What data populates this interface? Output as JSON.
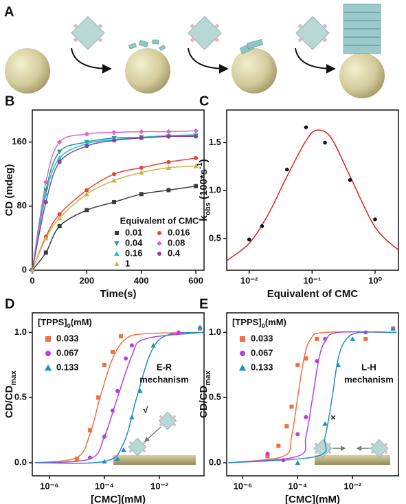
{
  "panel_a": {
    "label": "A"
  },
  "chart_data": [
    {
      "type": "line",
      "panel": "B",
      "xlabel": "Time(s)",
      "ylabel": "CD (mdeg)",
      "legend_title": "Equivalent of CMC",
      "x": [
        0,
        50,
        100,
        200,
        300,
        400,
        500,
        600
      ],
      "xlim": [
        0,
        630
      ],
      "ylim": [
        0,
        200
      ],
      "xticks": [
        0,
        200,
        400,
        600
      ],
      "yticks": [
        0,
        80,
        160
      ],
      "series": [
        {
          "name": "0.01",
          "color": "#3c3c3c",
          "marker": "square",
          "values": [
            0,
            22,
            55,
            75,
            85,
            95,
            100,
            105
          ]
        },
        {
          "name": "0.016",
          "color": "#e8423a",
          "marker": "circle",
          "values": [
            0,
            42,
            70,
            100,
            120,
            128,
            135,
            140
          ]
        },
        {
          "name": "0.04",
          "color": "#1f9e8e",
          "marker": "tri-down",
          "values": [
            0,
            100,
            148,
            160,
            165,
            166,
            167,
            168
          ]
        },
        {
          "name": "0.08",
          "color": "#d966c8",
          "marker": "diamond",
          "values": [
            0,
            110,
            160,
            170,
            172,
            173,
            173,
            174
          ]
        },
        {
          "name": "0.16",
          "color": "#22c0d0",
          "marker": "triangle",
          "values": [
            0,
            95,
            140,
            158,
            163,
            166,
            168,
            169
          ]
        },
        {
          "name": "0.4",
          "color": "#8a3fa0",
          "marker": "circle",
          "values": [
            0,
            85,
            135,
            155,
            162,
            165,
            167,
            167
          ]
        },
        {
          "name": "1",
          "color": "#c8b840",
          "marker": "triangle",
          "values": [
            0,
            40,
            65,
            95,
            112,
            122,
            128,
            130
          ]
        }
      ]
    },
    {
      "type": "scatter",
      "panel": "C",
      "xlabel": "Equivalent of CMC",
      "ylabel": [
        {
          "text": "k"
        },
        {
          "text": "obs",
          "shift": "sub"
        },
        {
          "text": " (100*s"
        },
        {
          "text": "-1",
          "shift": "super"
        },
        {
          "text": ")"
        }
      ],
      "xlog": true,
      "xlim": [
        0.0044,
        2.35
      ],
      "ylim": [
        0.17,
        1.84
      ],
      "xticks": [
        {
          "value": 0.01,
          "label": "10⁻²"
        },
        {
          "value": 0.1,
          "label": "10⁻¹"
        },
        {
          "value": 1,
          "label": "10⁰"
        }
      ],
      "yticks": [
        0.5,
        {
          "value": 1,
          "label": "1.0"
        },
        1.5
      ],
      "series": [
        {
          "color": "#111111",
          "marker": "circle",
          "x": [
            0.01,
            0.016,
            0.04,
            0.08,
            0.16,
            0.4,
            1
          ],
          "values": [
            0.49,
            0.63,
            1.22,
            1.66,
            1.5,
            1.11,
            0.7
          ],
          "fit_color": "#e02020",
          "fit_x": [
            0.0044,
            0.01,
            0.02,
            0.04,
            0.08,
            0.12,
            0.2,
            0.4,
            1,
            2.35
          ],
          "fit_values": [
            0.27,
            0.45,
            0.75,
            1.15,
            1.52,
            1.63,
            1.55,
            1.15,
            0.62,
            0.38
          ]
        }
      ]
    },
    {
      "type": "scatter",
      "panel": "D",
      "xlabel": "[CMC](mM)",
      "ylabel": [
        {
          "text": "CD/CD"
        },
        {
          "text": "max",
          "shift": "sub"
        }
      ],
      "legend_title": [
        {
          "text": "[TPPS]"
        },
        {
          "text": "0",
          "shift": "sub"
        },
        {
          "text": "(mM)"
        }
      ],
      "annotations": [
        {
          "text": "E-R"
        },
        {
          "text": "mechanism"
        },
        {
          "text": "√"
        }
      ],
      "xlog": true,
      "xlim": [
        2.4e-07,
        0.42
      ],
      "ylim": [
        -0.1,
        1.15
      ],
      "xticks": [
        {
          "value": 1e-06,
          "label": "10⁻⁶"
        },
        {
          "value": 0.0001,
          "label": "10⁻⁴"
        },
        {
          "value": 0.01,
          "label": "10⁻²"
        }
      ],
      "yticks": [
        {
          "value": 0,
          "label": "0.0"
        },
        0.5,
        {
          "value": 1,
          "label": "1.0"
        }
      ],
      "series": [
        {
          "name": "0.033",
          "color": "#f07040",
          "marker": "square",
          "x": [
            1e-05,
            3e-05,
            6e-05,
            0.0001,
            0.0002,
            0.0004,
            0.3
          ],
          "values": [
            0.03,
            0.25,
            0.5,
            0.75,
            0.85,
            0.97,
            1.03
          ],
          "fit_x": [
            3e-07,
            1e-05,
            3e-05,
            7e-05,
            0.0002,
            0.0006,
            0.003,
            0.4
          ],
          "fit_values": [
            0,
            0.04,
            0.22,
            0.5,
            0.8,
            0.95,
            0.99,
            1
          ]
        },
        {
          "name": "0.067",
          "color": "#b040e0",
          "marker": "circle",
          "x": [
            3e-05,
            0.0001,
            0.0002,
            0.0003,
            0.0006,
            0.001,
            0.05
          ],
          "values": [
            0.04,
            0.2,
            0.4,
            0.55,
            0.8,
            0.9,
            1
          ],
          "fit_x": [
            3e-07,
            3e-05,
            0.0001,
            0.0003,
            0.001,
            0.003,
            0.4
          ],
          "fit_values": [
            0,
            0.03,
            0.2,
            0.5,
            0.82,
            0.95,
            1
          ]
        },
        {
          "name": "0.133",
          "color": "#2090c0",
          "marker": "triangle",
          "x": [
            0.0001,
            0.0003,
            0.0005,
            0.001,
            0.002,
            0.006,
            0.3
          ],
          "values": [
            0.01,
            0.03,
            0.1,
            0.35,
            0.55,
            0.9,
            1.04
          ],
          "fit_x": [
            3e-07,
            0.0001,
            0.0005,
            0.0015,
            0.005,
            0.02,
            0.4
          ],
          "fit_values": [
            0,
            0.01,
            0.15,
            0.5,
            0.85,
            0.98,
            1
          ]
        }
      ]
    },
    {
      "type": "scatter",
      "panel": "E",
      "xlabel": "[CMC](mM)",
      "ylabel": [
        {
          "text": "CD/CD"
        },
        {
          "text": "max",
          "shift": "sub"
        }
      ],
      "legend_title": [
        {
          "text": "[TPPS]"
        },
        {
          "text": "0",
          "shift": "sub"
        },
        {
          "text": "(mM)"
        }
      ],
      "annotations": [
        {
          "text": "L-H"
        },
        {
          "text": "mechanism"
        },
        {
          "text": "×"
        }
      ],
      "xlog": true,
      "xlim": [
        2.6e-07,
        0.47
      ],
      "ylim": [
        -0.1,
        1.15
      ],
      "xticks": [
        {
          "value": 1e-06,
          "label": "10⁻⁶"
        },
        {
          "value": 0.0001,
          "label": "10⁻⁴"
        },
        {
          "value": 0.01,
          "label": "10⁻²"
        }
      ],
      "yticks": [
        {
          "value": 0,
          "label": "0.0"
        },
        0.5,
        {
          "value": 1,
          "label": "1.0"
        }
      ],
      "series": [
        {
          "name": "0.033",
          "color": "#f07040",
          "marker": "square",
          "x": [
            8e-06,
            2e-05,
            4e-05,
            6e-05,
            0.0001,
            0.0002,
            0.0005,
            0.03,
            0.3
          ],
          "values": [
            0.05,
            0.13,
            0.28,
            0.43,
            0.75,
            0.8,
            0.95,
            0.95,
            1.03
          ],
          "fit_x": [
            3e-07,
            3e-05,
            6e-05,
            0.0001,
            0.00017,
            0.0003,
            0.001,
            0.4
          ],
          "fit_values": [
            0,
            0.05,
            0.2,
            0.5,
            0.8,
            0.95,
            1,
            1
          ]
        },
        {
          "name": "0.067",
          "color": "#b040e0",
          "marker": "circle",
          "x": [
            8e-06,
            3e-05,
            0.0001,
            0.0002,
            0.0005,
            0.001,
            0.03
          ],
          "values": [
            0.07,
            0.02,
            0.22,
            0.35,
            0.78,
            0.95,
            1
          ],
          "fit_x": [
            3e-07,
            0.0001,
            0.0002,
            0.00035,
            0.0006,
            0.001,
            0.003,
            0.4
          ],
          "fit_values": [
            0,
            0.05,
            0.2,
            0.5,
            0.8,
            0.93,
            1,
            1
          ]
        },
        {
          "name": "0.133",
          "color": "#2090c0",
          "marker": "triangle",
          "x": [
            0.0001,
            0.001,
            0.003,
            0.01,
            0.3
          ],
          "values": [
            0,
            0.3,
            0.75,
            0.95,
            1.03
          ],
          "fit_x": [
            3e-07,
            0.0005,
            0.001,
            0.0018,
            0.003,
            0.006,
            0.02,
            0.4
          ],
          "fit_values": [
            0,
            0.05,
            0.2,
            0.5,
            0.8,
            0.95,
            1,
            1
          ]
        }
      ]
    }
  ]
}
